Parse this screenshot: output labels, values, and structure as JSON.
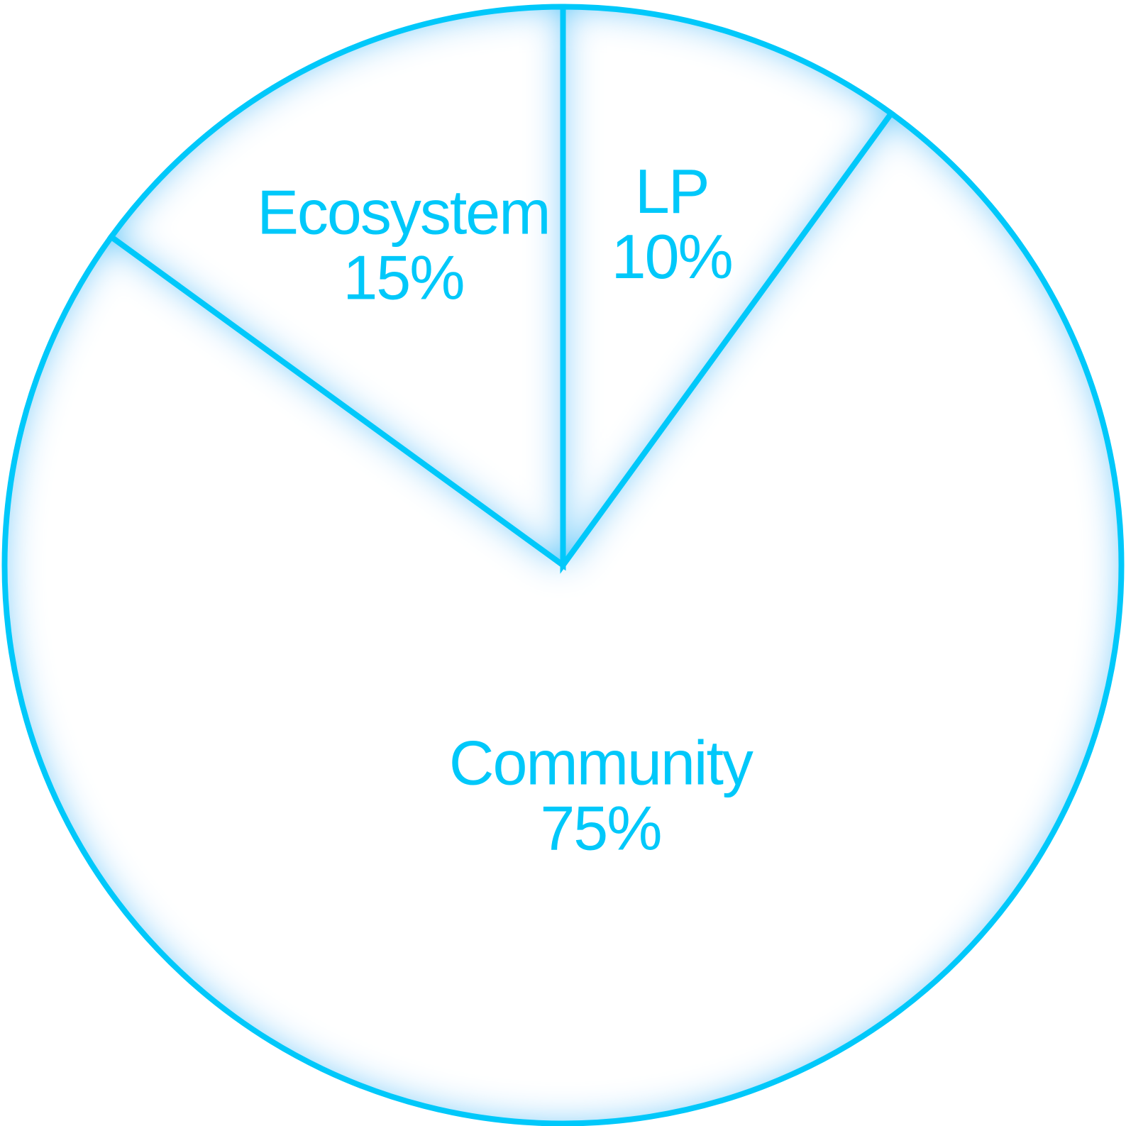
{
  "chart_data": {
    "type": "pie",
    "title": "",
    "categories": [
      "Community",
      "Ecosystem",
      "LP"
    ],
    "values": [
      75,
      15,
      10
    ],
    "value_labels": [
      "75%",
      "15%",
      "10%"
    ],
    "colors": {
      "stroke": "#00c8fa",
      "glow": "#00c8fa",
      "fill": "#ffffff",
      "text": "#00c8fa"
    },
    "legend": "none"
  }
}
